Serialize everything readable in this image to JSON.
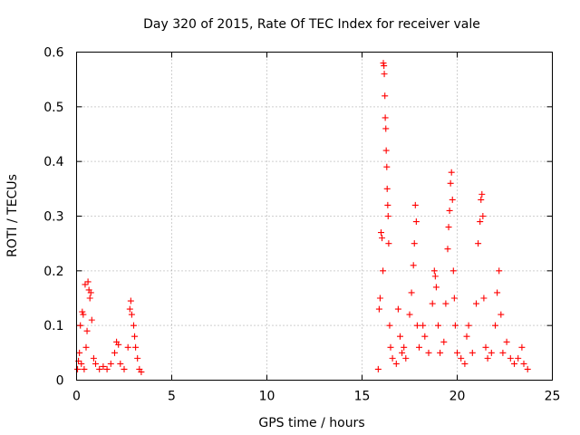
{
  "chart_data": {
    "type": "scatter",
    "title": "Day 320 of 2015, Rate Of TEC Index for receiver vale",
    "xlabel": "GPS time / hours",
    "ylabel": "ROTI / TECUs",
    "xlim": [
      0,
      25
    ],
    "ylim": [
      0,
      0.6
    ],
    "x_ticks": [
      0,
      5,
      10,
      15,
      20,
      25
    ],
    "x_tick_labels": [
      "0",
      "5",
      "10",
      "15",
      "20",
      "25"
    ],
    "y_ticks": [
      0,
      0.1,
      0.2,
      0.3,
      0.4,
      0.5,
      0.6
    ],
    "y_tick_labels": [
      "0",
      "0.1",
      "0.2",
      "0.3",
      "0.4",
      "0.5",
      "0.6"
    ],
    "grid": true,
    "marker": "+",
    "color": "#ff0000",
    "series": [
      {
        "name": "ROTI",
        "points": [
          [
            0.05,
            0.02
          ],
          [
            0.1,
            0.035
          ],
          [
            0.15,
            0.05
          ],
          [
            0.2,
            0.1
          ],
          [
            0.25,
            0.03
          ],
          [
            0.3,
            0.125
          ],
          [
            0.35,
            0.12
          ],
          [
            0.4,
            0.02
          ],
          [
            0.45,
            0.175
          ],
          [
            0.5,
            0.06
          ],
          [
            0.55,
            0.09
          ],
          [
            0.6,
            0.18
          ],
          [
            0.65,
            0.165
          ],
          [
            0.7,
            0.15
          ],
          [
            0.75,
            0.16
          ],
          [
            0.8,
            0.11
          ],
          [
            0.9,
            0.04
          ],
          [
            1.0,
            0.03
          ],
          [
            1.2,
            0.02
          ],
          [
            1.4,
            0.025
          ],
          [
            1.6,
            0.02
          ],
          [
            1.8,
            0.03
          ],
          [
            2.0,
            0.05
          ],
          [
            2.1,
            0.07
          ],
          [
            2.2,
            0.065
          ],
          [
            2.3,
            0.03
          ],
          [
            2.5,
            0.02
          ],
          [
            2.7,
            0.06
          ],
          [
            2.8,
            0.13
          ],
          [
            2.85,
            0.145
          ],
          [
            2.9,
            0.12
          ],
          [
            3.0,
            0.1
          ],
          [
            3.05,
            0.08
          ],
          [
            3.1,
            0.06
          ],
          [
            3.2,
            0.04
          ],
          [
            3.3,
            0.02
          ],
          [
            3.4,
            0.015
          ],
          [
            15.85,
            0.02
          ],
          [
            15.9,
            0.13
          ],
          [
            15.95,
            0.15
          ],
          [
            16.0,
            0.27
          ],
          [
            16.05,
            0.26
          ],
          [
            16.1,
            0.2
          ],
          [
            16.12,
            0.58
          ],
          [
            16.15,
            0.575
          ],
          [
            16.17,
            0.56
          ],
          [
            16.2,
            0.52
          ],
          [
            16.22,
            0.48
          ],
          [
            16.25,
            0.46
          ],
          [
            16.27,
            0.42
          ],
          [
            16.3,
            0.39
          ],
          [
            16.32,
            0.35
          ],
          [
            16.35,
            0.32
          ],
          [
            16.37,
            0.3
          ],
          [
            16.4,
            0.25
          ],
          [
            16.45,
            0.1
          ],
          [
            16.5,
            0.06
          ],
          [
            16.6,
            0.04
          ],
          [
            16.8,
            0.03
          ],
          [
            16.9,
            0.13
          ],
          [
            17.0,
            0.08
          ],
          [
            17.1,
            0.05
          ],
          [
            17.2,
            0.06
          ],
          [
            17.3,
            0.04
          ],
          [
            17.5,
            0.12
          ],
          [
            17.6,
            0.16
          ],
          [
            17.7,
            0.21
          ],
          [
            17.75,
            0.25
          ],
          [
            17.8,
            0.32
          ],
          [
            17.85,
            0.29
          ],
          [
            17.9,
            0.1
          ],
          [
            18.0,
            0.06
          ],
          [
            18.2,
            0.1
          ],
          [
            18.3,
            0.08
          ],
          [
            18.5,
            0.05
          ],
          [
            18.7,
            0.14
          ],
          [
            18.8,
            0.2
          ],
          [
            18.85,
            0.19
          ],
          [
            18.9,
            0.17
          ],
          [
            19.0,
            0.1
          ],
          [
            19.1,
            0.05
          ],
          [
            19.3,
            0.07
          ],
          [
            19.4,
            0.14
          ],
          [
            19.5,
            0.24
          ],
          [
            19.55,
            0.28
          ],
          [
            19.6,
            0.31
          ],
          [
            19.65,
            0.36
          ],
          [
            19.7,
            0.38
          ],
          [
            19.75,
            0.33
          ],
          [
            19.8,
            0.2
          ],
          [
            19.85,
            0.15
          ],
          [
            19.9,
            0.1
          ],
          [
            20.0,
            0.05
          ],
          [
            20.2,
            0.04
          ],
          [
            20.4,
            0.03
          ],
          [
            20.5,
            0.08
          ],
          [
            20.6,
            0.1
          ],
          [
            20.8,
            0.05
          ],
          [
            21.0,
            0.14
          ],
          [
            21.1,
            0.25
          ],
          [
            21.2,
            0.29
          ],
          [
            21.25,
            0.33
          ],
          [
            21.3,
            0.34
          ],
          [
            21.35,
            0.3
          ],
          [
            21.4,
            0.15
          ],
          [
            21.5,
            0.06
          ],
          [
            21.6,
            0.04
          ],
          [
            21.8,
            0.05
          ],
          [
            22.0,
            0.1
          ],
          [
            22.1,
            0.16
          ],
          [
            22.2,
            0.2
          ],
          [
            22.3,
            0.12
          ],
          [
            22.4,
            0.05
          ],
          [
            22.6,
            0.07
          ],
          [
            22.8,
            0.04
          ],
          [
            23.0,
            0.03
          ],
          [
            23.2,
            0.04
          ],
          [
            23.4,
            0.06
          ],
          [
            23.5,
            0.03
          ],
          [
            23.7,
            0.02
          ]
        ]
      }
    ]
  }
}
